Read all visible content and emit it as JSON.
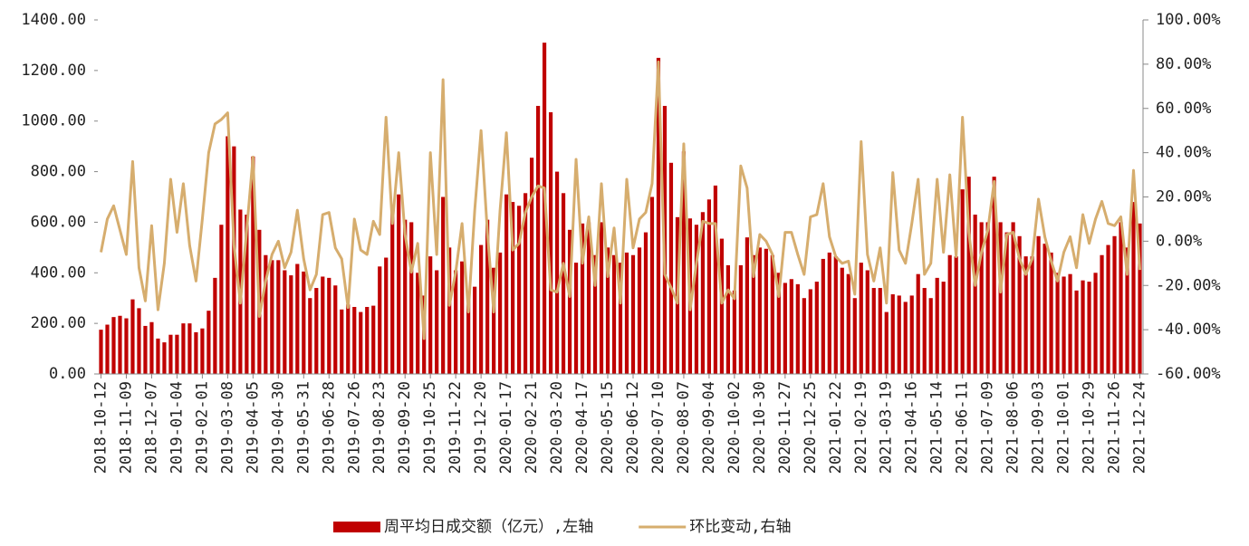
{
  "chart_data": {
    "type": "bar-line",
    "categories": [
      "2018-10-12",
      null,
      null,
      null,
      "2018-11-09",
      null,
      null,
      null,
      "2018-12-07",
      null,
      null,
      null,
      "2019-01-04",
      null,
      null,
      null,
      "2019-02-01",
      null,
      null,
      null,
      "2019-03-08",
      null,
      null,
      null,
      "2019-04-05",
      null,
      null,
      null,
      "2019-04-30",
      null,
      null,
      null,
      "2019-05-31",
      null,
      null,
      null,
      "2019-06-28",
      null,
      null,
      null,
      "2019-07-26",
      null,
      null,
      null,
      "2019-08-23",
      null,
      null,
      null,
      "2019-09-20",
      null,
      null,
      null,
      "2019-10-25",
      null,
      null,
      null,
      "2019-11-22",
      null,
      null,
      null,
      "2019-12-20",
      null,
      null,
      null,
      "2020-01-17",
      null,
      null,
      null,
      "2020-02-21",
      null,
      null,
      null,
      "2020-03-20",
      null,
      null,
      null,
      "2020-04-17",
      null,
      null,
      null,
      "2020-05-15",
      null,
      null,
      null,
      "2020-06-12",
      null,
      null,
      null,
      "2020-07-10",
      null,
      null,
      null,
      "2020-08-07",
      null,
      null,
      null,
      "2020-09-04",
      null,
      null,
      null,
      "2020-10-02",
      null,
      null,
      null,
      "2020-10-30",
      null,
      null,
      null,
      "2020-11-27",
      null,
      null,
      null,
      "2020-12-25",
      null,
      null,
      null,
      "2021-01-22",
      null,
      null,
      null,
      "2021-02-19",
      null,
      null,
      null,
      "2021-03-19",
      null,
      null,
      null,
      "2021-04-16",
      null,
      null,
      null,
      "2021-05-14",
      null,
      null,
      null,
      "2021-06-11",
      null,
      null,
      null,
      "2021-07-09",
      null,
      null,
      null,
      "2021-08-06",
      null,
      null,
      null,
      "2021-09-03",
      null,
      null,
      null,
      "2021-10-01",
      null,
      null,
      null,
      "2021-10-29",
      null,
      null,
      null,
      "2021-11-26",
      null,
      null,
      null,
      "2021-12-24"
    ],
    "series": [
      {
        "name": "周平均日成交额（亿元）,左轴",
        "type": "bar",
        "axis": "y",
        "color": "#c00000",
        "values": [
          175,
          195,
          225,
          230,
          220,
          295,
          260,
          190,
          205,
          140,
          125,
          155,
          155,
          200,
          200,
          165,
          180,
          250,
          380,
          590,
          940,
          900,
          650,
          630,
          860,
          570,
          470,
          450,
          450,
          410,
          390,
          435,
          405,
          300,
          340,
          385,
          380,
          350,
          255,
          275,
          265,
          245,
          265,
          270,
          425,
          460,
          640,
          710,
          610,
          600,
          400,
          310,
          465,
          410,
          700,
          500,
          410,
          445,
          310,
          345,
          510,
          610,
          420,
          480,
          710,
          680,
          665,
          715,
          855,
          1060,
          1310,
          1035,
          800,
          715,
          570,
          440,
          595,
          600,
          470,
          600,
          500,
          470,
          440,
          480,
          470,
          500,
          560,
          700,
          1250,
          1060,
          835,
          620,
          880,
          615,
          590,
          640,
          690,
          745,
          535,
          430,
          330,
          430,
          540,
          470,
          500,
          495,
          470,
          400,
          360,
          375,
          355,
          300,
          335,
          365,
          455,
          480,
          465,
          420,
          395,
          300,
          440,
          410,
          340,
          340,
          245,
          315,
          310,
          285,
          310,
          395,
          340,
          300,
          380,
          365,
          470,
          465,
          730,
          780,
          630,
          600,
          600,
          780,
          600,
          560,
          600,
          545,
          465,
          465,
          545,
          515,
          480,
          400,
          385,
          395,
          330,
          370,
          365,
          400,
          470,
          510,
          545,
          600,
          500,
          680,
          595
        ]
      },
      {
        "name": "环比变动,右轴",
        "type": "line",
        "axis": "y2",
        "color": "#d6ad6e",
        "values": [
          -5,
          10,
          16,
          5,
          -6,
          36,
          -12,
          -27,
          7,
          -31,
          -10,
          28,
          4,
          26,
          -2,
          -18,
          10,
          40,
          53,
          55,
          58,
          -2,
          -28,
          5,
          38,
          -34,
          -18,
          -6,
          0,
          -12,
          -5,
          14,
          -8,
          -22,
          -15,
          12,
          13,
          -3,
          -8,
          -30,
          10,
          -4,
          -6,
          9,
          3,
          56,
          8,
          40,
          3,
          -14,
          -1,
          -44,
          40,
          -6,
          73,
          -29,
          -14,
          8,
          -32,
          14,
          50,
          4,
          -32,
          14,
          49,
          -4,
          -1,
          13,
          20,
          25,
          24,
          -22,
          -23,
          -10,
          -25,
          37,
          -10,
          11,
          -20,
          26,
          -16,
          6,
          -28,
          28,
          -3,
          10,
          13,
          26,
          81,
          -15,
          -21,
          -28,
          44,
          -31,
          -10,
          9,
          8,
          8,
          -28,
          -22,
          -26,
          34,
          24,
          -16,
          3,
          0,
          -6,
          -25,
          4,
          4,
          -6,
          -15,
          11,
          12,
          26,
          2,
          -7,
          -10,
          -9,
          -24,
          45,
          -6,
          -18,
          -3,
          -28,
          31,
          -4,
          -10,
          8,
          28,
          -15,
          -10,
          28,
          -5,
          30,
          -7,
          56,
          4,
          -20,
          -5,
          5,
          27,
          -23,
          3,
          4,
          -8,
          -15,
          -8,
          19,
          2,
          -9,
          -18,
          -5,
          2,
          -12,
          12,
          -1,
          10,
          18,
          8,
          7,
          11,
          -15,
          32,
          -13
        ]
      }
    ],
    "ylim": [
      0,
      1400
    ],
    "yticks": [
      {
        "value": 0,
        "label": "0.00"
      },
      {
        "value": 200,
        "label": "200.00"
      },
      {
        "value": 400,
        "label": "400.00"
      },
      {
        "value": 600,
        "label": "600.00"
      },
      {
        "value": 800,
        "label": "800.00"
      },
      {
        "value": 1000,
        "label": "1000.00"
      },
      {
        "value": 1200,
        "label": "1200.00"
      },
      {
        "value": 1400,
        "label": "1400.00"
      }
    ],
    "y2lim": [
      -60,
      100
    ],
    "y2ticks": [
      {
        "value": -60,
        "label": "-60.00%"
      },
      {
        "value": -40,
        "label": "-40.00%"
      },
      {
        "value": -20,
        "label": "-20.00%"
      },
      {
        "value": 0,
        "label": "0.00%"
      },
      {
        "value": 20,
        "label": "20.00%"
      },
      {
        "value": 40,
        "label": "40.00%"
      },
      {
        "value": 60,
        "label": "60.00%"
      },
      {
        "value": 80,
        "label": "80.00%"
      },
      {
        "value": 100,
        "label": "100.00%"
      }
    ],
    "legend": "bottom"
  }
}
